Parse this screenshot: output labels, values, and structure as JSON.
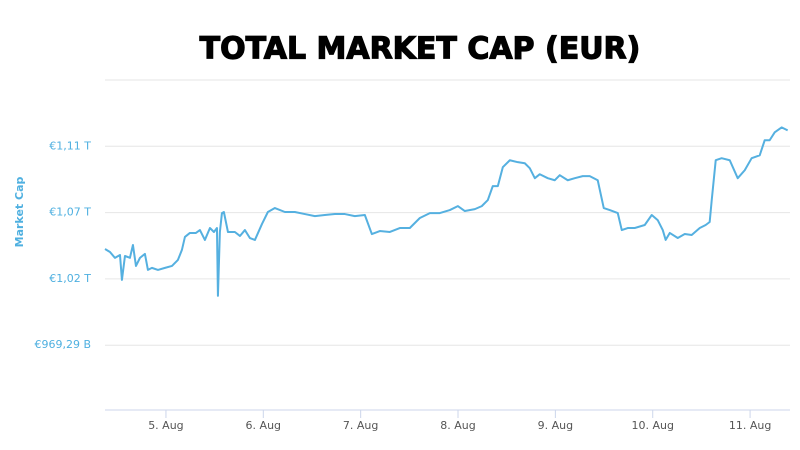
{
  "chart_data": {
    "type": "line",
    "title": "TOTAL MARKET CAP (EUR)",
    "y_label": "Market Cap",
    "color": "#55b0e0",
    "grid": true,
    "xlim": [
      4.374,
      11.41
    ],
    "xticks": [
      {
        "value": 5,
        "label": "5. Aug"
      },
      {
        "value": 6,
        "label": "6. Aug"
      },
      {
        "value": 7,
        "label": "7. Aug"
      },
      {
        "value": 8,
        "label": "8. Aug"
      },
      {
        "value": 9,
        "label": "9. Aug"
      },
      {
        "value": 10,
        "label": "10. Aug"
      },
      {
        "value": 11,
        "label": "11. Aug"
      }
    ],
    "ylim": [
      0.922,
      1.163
    ],
    "yticks": [
      {
        "value": 0.96929,
        "label": "€969,29 B"
      },
      {
        "value": 1.01773,
        "label": "€1,02 T"
      },
      {
        "value": 1.06617,
        "label": "€1,07 T"
      },
      {
        "value": 1.11461,
        "label": "€1,11 T"
      }
    ],
    "x": [
      4.374,
      4.425,
      4.476,
      4.528,
      4.548,
      4.579,
      4.63,
      4.661,
      4.692,
      4.733,
      4.784,
      4.815,
      4.856,
      4.918,
      4.99,
      5.062,
      5.123,
      5.164,
      5.195,
      5.246,
      5.308,
      5.349,
      5.4,
      5.452,
      5.493,
      5.524,
      5.534,
      5.554,
      5.575,
      5.595,
      5.637,
      5.708,
      5.76,
      5.811,
      5.862,
      5.914,
      5.986,
      6.047,
      6.119,
      6.222,
      6.324,
      6.427,
      6.53,
      6.632,
      6.735,
      6.838,
      6.94,
      7.043,
      7.115,
      7.197,
      7.3,
      7.402,
      7.505,
      7.608,
      7.711,
      7.813,
      7.916,
      7.998,
      8.07,
      8.173,
      8.244,
      8.306,
      8.357,
      8.409,
      8.46,
      8.532,
      8.614,
      8.686,
      8.737,
      8.789,
      8.84,
      8.922,
      8.994,
      9.045,
      9.127,
      9.199,
      9.281,
      9.353,
      9.435,
      9.497,
      9.559,
      9.641,
      9.682,
      9.743,
      9.815,
      9.918,
      9.99,
      10.051,
      10.103,
      10.133,
      10.175,
      10.257,
      10.329,
      10.4,
      10.483,
      10.544,
      10.585,
      10.606,
      10.647,
      10.708,
      10.791,
      10.873,
      10.945,
      11.016,
      11.099,
      11.15,
      11.201,
      11.253,
      11.324,
      11.386
    ],
    "values": [
      1.0396,
      1.0374,
      1.0331,
      1.0352,
      1.017,
      1.0345,
      1.0331,
      1.0425,
      1.0272,
      1.0331,
      1.036,
      1.0243,
      1.0258,
      1.0243,
      1.0258,
      1.0272,
      1.0316,
      1.0389,
      1.0484,
      1.0513,
      1.0513,
      1.0534,
      1.0462,
      1.0549,
      1.052,
      1.0549,
      1.0054,
      1.052,
      1.0658,
      1.0666,
      1.052,
      1.052,
      1.0491,
      1.0534,
      1.0476,
      1.0462,
      1.0578,
      1.0666,
      1.0695,
      1.0666,
      1.0666,
      1.0651,
      1.0636,
      1.0644,
      1.0651,
      1.0651,
      1.0636,
      1.0644,
      1.0505,
      1.0527,
      1.052,
      1.0549,
      1.0549,
      1.0622,
      1.0658,
      1.0658,
      1.068,
      1.0709,
      1.0673,
      1.0687,
      1.0709,
      1.0753,
      1.0855,
      1.0855,
      1.0993,
      1.1044,
      1.103,
      1.1022,
      1.0986,
      1.0913,
      1.0942,
      1.0913,
      1.0898,
      1.0935,
      1.0898,
      1.0913,
      1.0928,
      1.0928,
      1.0898,
      1.0695,
      1.068,
      1.0658,
      1.0534,
      1.0549,
      1.0549,
      1.0571,
      1.0644,
      1.0607,
      1.0534,
      1.0462,
      1.0513,
      1.0476,
      1.0505,
      1.0498,
      1.0549,
      1.0571,
      1.0593,
      1.0753,
      1.1044,
      1.1059,
      1.1044,
      1.0913,
      1.0971,
      1.1059,
      1.108,
      1.119,
      1.119,
      1.1248,
      1.1284,
      1.1262
    ]
  }
}
